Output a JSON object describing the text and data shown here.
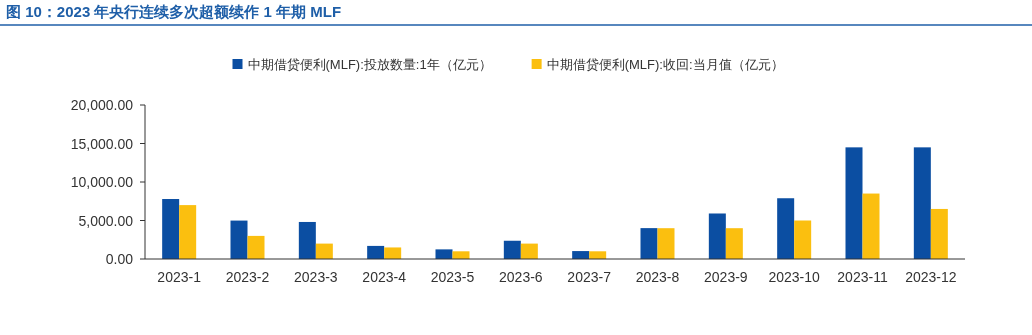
{
  "chart_data": {
    "type": "bar",
    "title": "图 10：2023 年央行连续多次超额续作 1 年期 MLF",
    "categories": [
      "2023-1",
      "2023-2",
      "2023-3",
      "2023-4",
      "2023-5",
      "2023-6",
      "2023-7",
      "2023-8",
      "2023-9",
      "2023-10",
      "2023-11",
      "2023-12"
    ],
    "series": [
      {
        "name": "中期借贷便利(MLF):投放数量:1年（亿元）",
        "color": "#0b4ea2",
        "values": [
          7790,
          4990,
          4810,
          1700,
          1250,
          2370,
          1030,
          4010,
          5910,
          7890,
          14500,
          14500
        ]
      },
      {
        "name": "中期借贷便利(MLF):收回:当月值（亿元）",
        "color": "#fbbf0f",
        "values": [
          7000,
          3000,
          2000,
          1500,
          1000,
          2000,
          1000,
          4000,
          4000,
          5000,
          8500,
          6500
        ]
      }
    ],
    "ylim": [
      0,
      20000
    ],
    "yticks": [
      {
        "value": 0,
        "label": "0.00"
      },
      {
        "value": 5000,
        "label": "5,000.00"
      },
      {
        "value": 10000,
        "label": "10,000.00"
      },
      {
        "value": 15000,
        "label": "15,000.00"
      },
      {
        "value": 20000,
        "label": "20,000.00"
      }
    ],
    "legend": "top",
    "grid": false
  }
}
